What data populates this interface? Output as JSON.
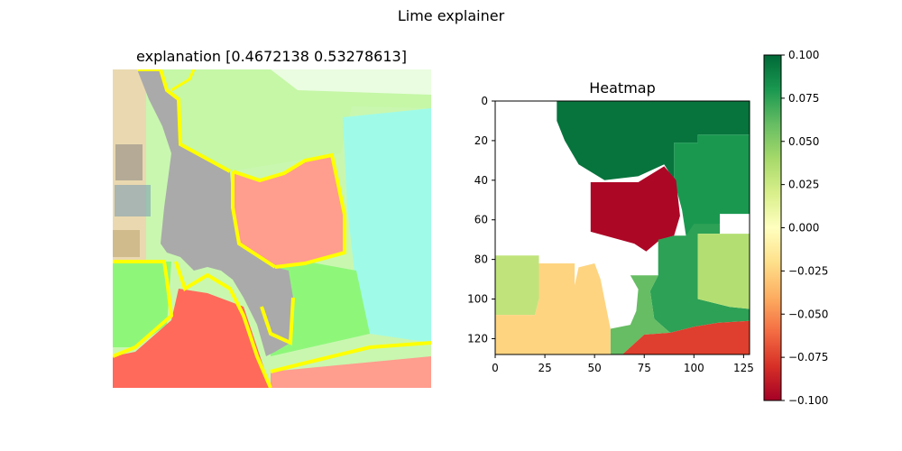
{
  "figure": {
    "suptitle": "Lime explainer"
  },
  "chart_data": [
    {
      "type": "image",
      "title": "explanation [0.4672138  0.53278613]",
      "explanation_scores": [
        0.4672138,
        0.53278613
      ],
      "axes_visible": false,
      "overlay_colors": {
        "positive": "#66ff66",
        "negative": "#ff6666",
        "boundary": "#ffff00",
        "subject": "#a8a8a8"
      }
    },
    {
      "type": "heatmap",
      "title": "Heatmap",
      "xlim": [
        0,
        128
      ],
      "ylim": [
        128,
        0
      ],
      "xticks": [
        0,
        25,
        50,
        75,
        100,
        125
      ],
      "yticks": [
        0,
        20,
        40,
        60,
        80,
        100,
        120
      ],
      "colormap": "RdYlGn",
      "vmin": -0.1,
      "vmax": 0.1,
      "colorbar_ticks": [
        "0.100",
        "0.075",
        "0.050",
        "0.025",
        "0.000",
        "−0.025",
        "−0.050",
        "−0.075",
        "−0.100"
      ],
      "segments": [
        {
          "value": 0.095,
          "points": [
            [
              31,
              0
            ],
            [
              128,
              0
            ],
            [
              128,
              17
            ],
            [
              102,
              17
            ],
            [
              102,
              21
            ],
            [
              90,
              21
            ],
            [
              90,
              40
            ],
            [
              85,
              32
            ],
            [
              72,
              38
            ],
            [
              55,
              40
            ],
            [
              42,
              32
            ],
            [
              35,
              20
            ],
            [
              31,
              10
            ]
          ]
        },
        {
          "value": 0.08,
          "points": [
            [
              102,
              17
            ],
            [
              128,
              17
            ],
            [
              128,
              57
            ],
            [
              113,
              57
            ],
            [
              113,
              62
            ],
            [
              96,
              68
            ],
            [
              94,
              55
            ],
            [
              90,
              40
            ],
            [
              90,
              21
            ],
            [
              102,
              21
            ]
          ]
        },
        {
          "value": -0.097,
          "points": [
            [
              48,
              41
            ],
            [
              72,
              41
            ],
            [
              85,
              33
            ],
            [
              91,
              40
            ],
            [
              93,
              58
            ],
            [
              90,
              68
            ],
            [
              83,
              70
            ],
            [
              76,
              76
            ],
            [
              70,
              72
            ],
            [
              48,
              66
            ]
          ]
        },
        {
          "value": 0.075,
          "points": [
            [
              82,
              70
            ],
            [
              90,
              68
            ],
            [
              96,
              68
            ],
            [
              100,
              62
            ],
            [
              113,
              62
            ],
            [
              113,
              67
            ],
            [
              102,
              67
            ],
            [
              102,
              100
            ],
            [
              118,
              104
            ],
            [
              128,
              105
            ],
            [
              128,
              111
            ],
            [
              112,
              112
            ],
            [
              100,
              114
            ],
            [
              88,
              117
            ],
            [
              80,
              110
            ],
            [
              78,
              96
            ],
            [
              82,
              88
            ]
          ]
        },
        {
          "value": 0.035,
          "points": [
            [
              102,
              67
            ],
            [
              128,
              67
            ],
            [
              128,
              105
            ],
            [
              118,
              104
            ],
            [
              102,
              100
            ]
          ]
        },
        {
          "value": 0.06,
          "points": [
            [
              68,
              88
            ],
            [
              82,
              88
            ],
            [
              78,
              96
            ],
            [
              80,
              110
            ],
            [
              88,
              117
            ],
            [
              75,
              118
            ],
            [
              64,
              128
            ],
            [
              58,
              128
            ],
            [
              58,
              115
            ],
            [
              68,
              113
            ],
            [
              71,
              106
            ],
            [
              72,
              95
            ]
          ]
        },
        {
          "value": 0.03,
          "points": [
            [
              0,
              78
            ],
            [
              22,
              78
            ],
            [
              22,
              100
            ],
            [
              20,
              108
            ],
            [
              0,
              108
            ]
          ]
        },
        {
          "value": -0.025,
          "points": [
            [
              22,
              82
            ],
            [
              40,
              82
            ],
            [
              40,
              93
            ],
            [
              42,
              84
            ],
            [
              50,
              82
            ],
            [
              53,
              90
            ],
            [
              56,
              105
            ],
            [
              58,
              115
            ],
            [
              58,
              128
            ],
            [
              0,
              128
            ],
            [
              0,
              108
            ],
            [
              20,
              108
            ],
            [
              22,
              100
            ]
          ]
        },
        {
          "value": -0.075,
          "points": [
            [
              64,
              128
            ],
            [
              75,
              118
            ],
            [
              88,
              117
            ],
            [
              100,
              114
            ],
            [
              112,
              112
            ],
            [
              128,
              111
            ],
            [
              128,
              128
            ]
          ]
        }
      ]
    }
  ]
}
